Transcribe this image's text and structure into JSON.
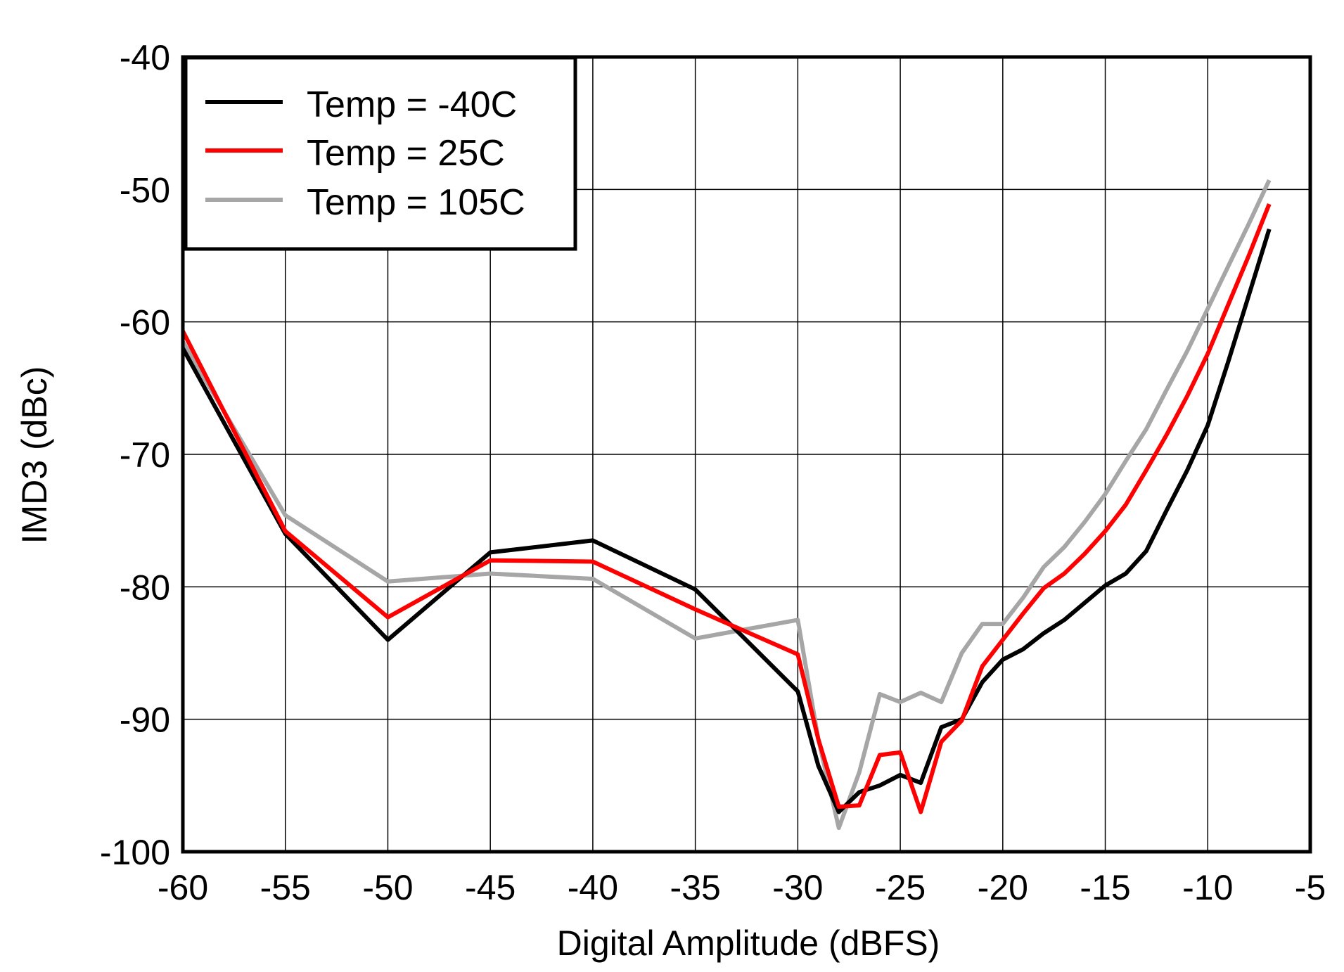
{
  "chart_data": {
    "type": "line",
    "title": "",
    "xlabel": "Digital Amplitude (dBFS)",
    "ylabel": "IMD3 (dBc)",
    "xlim": [
      -60,
      -5
    ],
    "ylim": [
      -100,
      -40
    ],
    "xticks": [
      -60,
      -55,
      -50,
      -45,
      -40,
      -35,
      -30,
      -25,
      -20,
      -15,
      -10,
      -5
    ],
    "yticks": [
      -40,
      -50,
      -60,
      -70,
      -80,
      -90,
      -100
    ],
    "xtick_labels": [
      "-60",
      "-55",
      "-50",
      "-45",
      "-40",
      "-35",
      "-30",
      "-25",
      "-20",
      "-15",
      "-10",
      "-5"
    ],
    "ytick_labels": [
      "-40",
      "-50",
      "-60",
      "-70",
      "-80",
      "-90",
      "-100"
    ],
    "grid": true,
    "legend_position": "top-left",
    "series": [
      {
        "name": "Temp = -40C",
        "color": "#000000",
        "x": [
          -60,
          -55,
          -50,
          -45,
          -40,
          -35,
          -30,
          -29,
          -28,
          -27,
          -26,
          -25,
          -24,
          -23,
          -22,
          -21,
          -20,
          -19,
          -18,
          -17,
          -16,
          -15,
          -14,
          -13,
          -12,
          -11,
          -10,
          -9,
          -8,
          -7
        ],
        "y": [
          -62,
          -76,
          -84,
          -77.4,
          -76.5,
          -80.2,
          -87.9,
          -93.5,
          -97,
          -95.5,
          -95,
          -94.2,
          -94.8,
          -90.6,
          -90,
          -87.2,
          -85.5,
          -84.7,
          -83.5,
          -82.5,
          -81.2,
          -79.9,
          -79,
          -77.3,
          -74.2,
          -71.2,
          -67.8,
          -63,
          -58,
          -53
        ]
      },
      {
        "name": "Temp = 25C",
        "color": "#ff0000",
        "x": [
          -60,
          -55,
          -50,
          -45,
          -40,
          -35,
          -30,
          -29,
          -28,
          -27,
          -26,
          -25,
          -24,
          -23,
          -22,
          -21,
          -20,
          -19,
          -18,
          -17,
          -16,
          -15,
          -14,
          -13,
          -12,
          -11,
          -10,
          -9,
          -8,
          -7
        ],
        "y": [
          -60.7,
          -75.8,
          -82.3,
          -78,
          -78.1,
          -81.7,
          -85.1,
          -91.5,
          -96.6,
          -96.5,
          -92.7,
          -92.5,
          -97,
          -91.7,
          -90.1,
          -86,
          -84,
          -82,
          -80.1,
          -79,
          -77.5,
          -75.8,
          -73.8,
          -71.2,
          -68.5,
          -65.6,
          -62.4,
          -58.7,
          -55,
          -51.1
        ]
      },
      {
        "name": "Temp = 105C",
        "color": "#a6a6a6",
        "x": [
          -60,
          -55,
          -50,
          -45,
          -40,
          -35,
          -30,
          -29,
          -28,
          -27,
          -26,
          -25,
          -24,
          -23,
          -22,
          -21,
          -20,
          -19,
          -18,
          -17,
          -16,
          -15,
          -14,
          -13,
          -12,
          -11,
          -10,
          -9,
          -8,
          -7
        ],
        "y": [
          -61.5,
          -74.6,
          -79.6,
          -79,
          -79.4,
          -83.9,
          -82.5,
          -91.5,
          -98.2,
          -94,
          -88.1,
          -88.7,
          -88,
          -88.7,
          -85,
          -82.8,
          -82.8,
          -80.8,
          -78.5,
          -77,
          -75.1,
          -73,
          -70.5,
          -68.1,
          -65.1,
          -62.2,
          -59,
          -55.8,
          -52.6,
          -49.3
        ]
      }
    ]
  }
}
